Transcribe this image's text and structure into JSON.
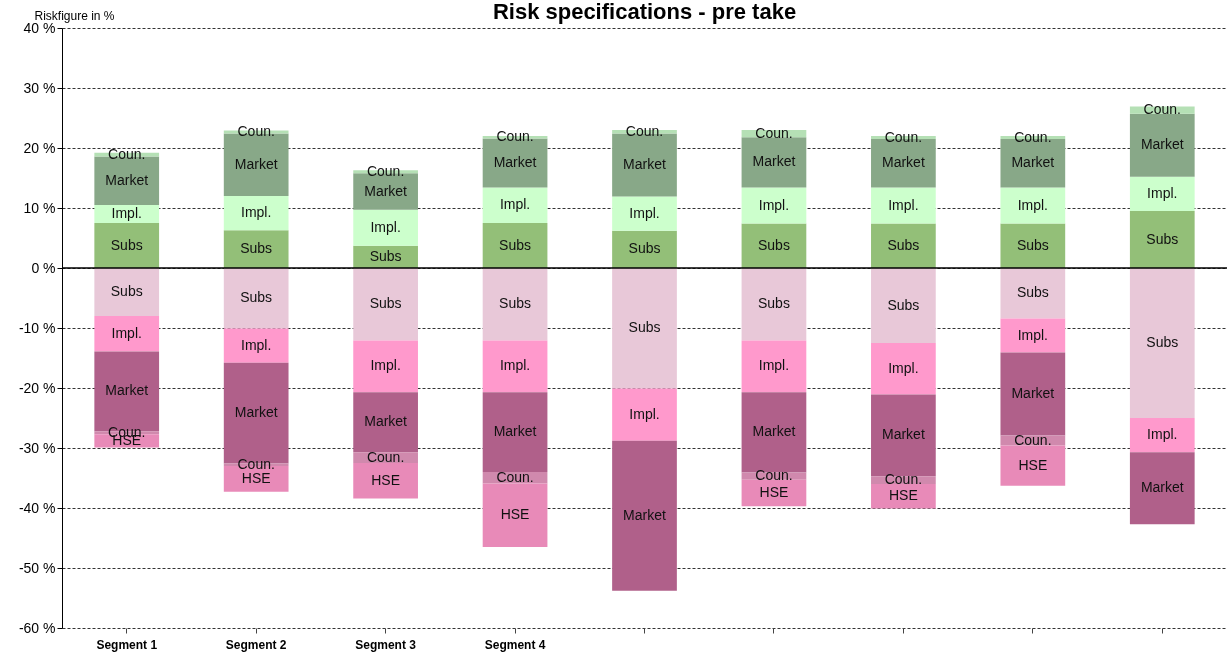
{
  "chart_data": {
    "type": "bar",
    "stacked": true,
    "title": "Risk specifications - pre take",
    "ylabel": "Riskfigure in %",
    "categories": [
      "Segment 1",
      "Segment 2",
      "Segment 3",
      "Segment 4",
      null,
      null,
      null,
      null,
      null
    ],
    "series": [
      {
        "name": "Subs",
        "color": "#93bf78",
        "values": [
          7.5,
          6.3,
          3.7,
          7.5,
          6.2,
          7.4,
          7.4,
          7.4,
          9.5
        ]
      },
      {
        "name": "Impl.",
        "color": "#ccffcc",
        "values": [
          3.0,
          5.7,
          6.0,
          5.9,
          5.7,
          6.0,
          6.0,
          6.0,
          5.7
        ]
      },
      {
        "name": "Market",
        "color": "#88a888",
        "values": [
          8.1,
          10.4,
          6.1,
          8.2,
          10.5,
          8.4,
          8.1,
          8.1,
          10.5
        ]
      },
      {
        "name": "Coun.",
        "color": "#b5e0b5",
        "values": [
          0.6,
          0.5,
          0.5,
          0.4,
          0.6,
          1.2,
          0.5,
          0.5,
          1.2
        ]
      },
      {
        "name": "Subs",
        "color": "#e8c8d8",
        "values": [
          -8.0,
          -10.1,
          -12.1,
          -12.1,
          -20.1,
          -12.1,
          -12.5,
          -8.4,
          -25.0
        ]
      },
      {
        "name": "Impl.",
        "color": "#ff99cc",
        "values": [
          -5.9,
          -5.7,
          -8.6,
          -8.6,
          -8.7,
          -8.6,
          -8.6,
          -5.7,
          -5.7
        ]
      },
      {
        "name": "Market",
        "color": "#b0608a",
        "values": [
          -13.3,
          -16.8,
          -10.0,
          -13.3,
          -25.0,
          -13.4,
          -13.6,
          -13.8,
          -12.0
        ]
      },
      {
        "name": "Coun.",
        "color": "#d089ad",
        "values": [
          -0.5,
          -0.4,
          -1.8,
          -1.9,
          null,
          -1.2,
          -1.3,
          -1.7,
          null
        ]
      },
      {
        "name": "HSE",
        "color": "#e88ab8",
        "values": [
          -2.2,
          -4.3,
          -5.9,
          -10.6,
          null,
          -4.4,
          -4.1,
          -6.7,
          null
        ]
      }
    ],
    "ylim": [
      -60,
      40
    ],
    "yticks": [
      {
        "value": -60,
        "label": "-60 %"
      },
      {
        "value": -50,
        "label": "-50 %"
      },
      {
        "value": -40,
        "label": "-40 %"
      },
      {
        "value": -30,
        "label": "-30 %"
      },
      {
        "value": -20,
        "label": "-20 %"
      },
      {
        "value": -10,
        "label": "-10 %"
      },
      {
        "value": 0,
        "label": "0 %"
      },
      {
        "value": 10,
        "label": "10 %"
      },
      {
        "value": 20,
        "label": "20 %"
      },
      {
        "value": 30,
        "label": "30 %"
      },
      {
        "value": 40,
        "label": "40 %"
      }
    ],
    "grid": "y",
    "legend": false
  }
}
